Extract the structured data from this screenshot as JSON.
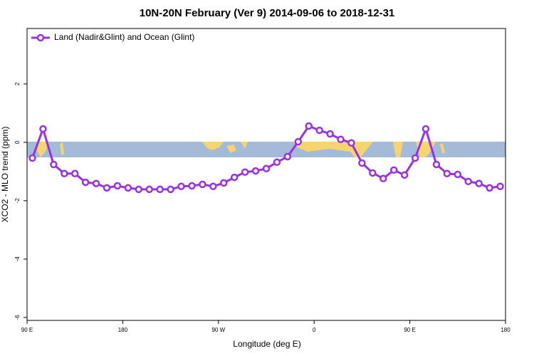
{
  "chart_data": {
    "type": "line",
    "title": "10N-20N February (Ver 9)   2014-09-06 to 2018-12-31",
    "x_label": "Longitude (deg E)",
    "y_label": "XCO2 - MLO trend (ppm)",
    "x": [
      95,
      105,
      115,
      125,
      135,
      145,
      155,
      165,
      175,
      185,
      195,
      205,
      215,
      225,
      235,
      245,
      255,
      265,
      275,
      285,
      295,
      305,
      315,
      325,
      335,
      345,
      355,
      365,
      375,
      385,
      395,
      405,
      415,
      425,
      435,
      445,
      455,
      465,
      475,
      485,
      495,
      505,
      515,
      525,
      535
    ],
    "series": [
      {
        "name": "Land (Nadir&Glint) and Ocean (Glint)",
        "color": "#9b30e0",
        "values": [
          -0.54,
          0.46,
          -0.76,
          -1.07,
          -1.07,
          -1.37,
          -1.41,
          -1.56,
          -1.49,
          -1.56,
          -1.61,
          -1.61,
          -1.61,
          -1.61,
          -1.51,
          -1.49,
          -1.44,
          -1.51,
          -1.39,
          -1.2,
          -1.02,
          -0.98,
          -0.9,
          -0.68,
          -0.49,
          0.02,
          0.56,
          0.41,
          0.29,
          0.1,
          -0.02,
          -0.71,
          -1.05,
          -1.24,
          -0.95,
          -1.12,
          -0.54,
          0.46,
          -0.76,
          -1.07,
          -1.1,
          -1.34,
          -1.41,
          -1.56,
          -1.51
        ]
      }
    ],
    "xlim": [
      90,
      540
    ],
    "xticks": [
      {
        "value": 90,
        "label": "90 E"
      },
      {
        "value": 180,
        "label": "180"
      },
      {
        "value": 270,
        "label": "90 W"
      },
      {
        "value": 360,
        "label": "0"
      },
      {
        "value": 450,
        "label": "90 E"
      },
      {
        "value": 540,
        "label": "180"
      }
    ],
    "ylim": [
      -6.1,
      3.9
    ],
    "yticks": [
      -6,
      -4,
      -2,
      0,
      2
    ],
    "legend": "top-left"
  }
}
